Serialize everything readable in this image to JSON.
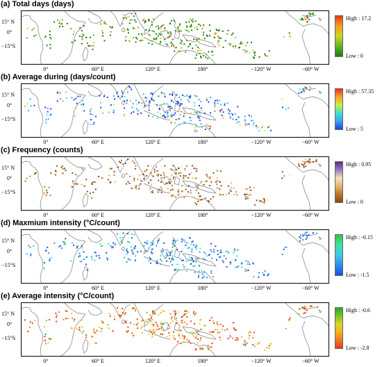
{
  "panels": [
    {
      "title": "(a) Total days (days)",
      "legend_high": "High : 17.2",
      "legend_low": "Low : 0",
      "colors": [
        "#1f7a1a",
        "#62b323",
        "#c9d621",
        "#f2a01f",
        "#e83a1a"
      ],
      "weights": [
        0.55,
        0.22,
        0.12,
        0.07,
        0.04
      ]
    },
    {
      "title": "(b) Average during (days/count)",
      "legend_high": "High : 57.35",
      "legend_low": "Low : 5",
      "colors": [
        "#1f3be0",
        "#38a6f0",
        "#3fe0d8",
        "#c8ee3a",
        "#f1a530",
        "#e8321f"
      ],
      "weights": [
        0.4,
        0.28,
        0.14,
        0.08,
        0.06,
        0.04
      ]
    },
    {
      "title": "(c) Frequency (counts)",
      "legend_high": "High : 0.95",
      "legend_low": "Low : 0",
      "colors": [
        "#8c4a12",
        "#b8782a",
        "#e2b86a",
        "#f2e2c2",
        "#9a7cc0",
        "#5a2a86"
      ],
      "weights": [
        0.5,
        0.24,
        0.14,
        0.07,
        0.03,
        0.02
      ]
    },
    {
      "title": "(d) Maxmium intensity (°C/count)",
      "legend_high": "High : -0.15",
      "legend_low": "Low : -1.5",
      "colors": [
        "#1f4fe0",
        "#2d8cef",
        "#3ec8e8",
        "#3fe0a8",
        "#36c83a"
      ],
      "weights": [
        0.34,
        0.32,
        0.2,
        0.1,
        0.04
      ]
    },
    {
      "title": "(e) Average intensity (°C/count)",
      "legend_high": "High : -0.6",
      "legend_low": "Low : -2.8",
      "colors": [
        "#e83a1a",
        "#f07a20",
        "#f2b21f",
        "#d8d822",
        "#7ac22a",
        "#2aa82a"
      ],
      "weights": [
        0.36,
        0.24,
        0.16,
        0.12,
        0.08,
        0.04
      ]
    }
  ],
  "axes": {
    "lat_labels": [
      "15° N",
      "0°",
      "−15°S"
    ],
    "lon_labels": [
      "0°",
      "60° E",
      "120° E",
      "180°",
      "−120° W",
      "−60° W"
    ]
  }
}
